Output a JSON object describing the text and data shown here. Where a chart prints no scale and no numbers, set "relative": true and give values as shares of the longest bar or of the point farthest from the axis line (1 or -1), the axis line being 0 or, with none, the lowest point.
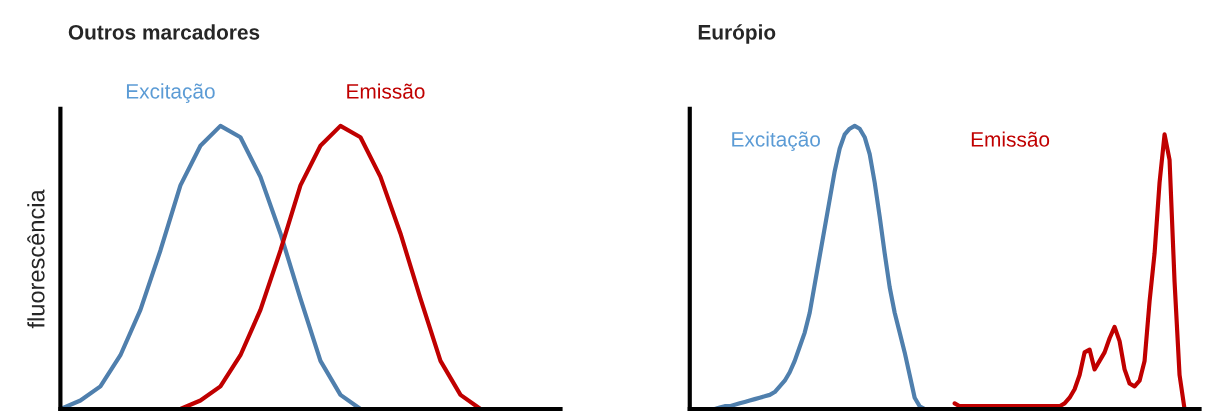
{
  "chart_data": [
    {
      "type": "line",
      "title": "Outros marcadores",
      "ylabel": "fluorescência",
      "relative": true,
      "legend": false,
      "marker": "none",
      "line_style": "solid",
      "categories": [
        null,
        null,
        null,
        null,
        null,
        null,
        null,
        null,
        null,
        null,
        null,
        null,
        null,
        null,
        null,
        null,
        null,
        null,
        null,
        null,
        null,
        null,
        null,
        null,
        null,
        null
      ],
      "series": [
        {
          "name": "Excitação",
          "color": "#4f7fad",
          "values": [
            0,
            0.03,
            0.08,
            0.19,
            0.35,
            0.56,
            0.79,
            0.93,
            1,
            0.96,
            0.82,
            0.62,
            0.39,
            0.17,
            0.05,
            0,
            null,
            null,
            null,
            null,
            null,
            null,
            null,
            null,
            null,
            null
          ]
        },
        {
          "name": "Emissão",
          "color": "#c00000",
          "values": [
            null,
            null,
            null,
            null,
            null,
            null,
            0,
            0.03,
            0.08,
            0.19,
            0.35,
            0.56,
            0.79,
            0.93,
            1,
            0.96,
            0.82,
            0.62,
            0.39,
            0.17,
            0.05,
            0,
            null,
            null,
            null,
            null
          ]
        }
      ]
    },
    {
      "type": "line",
      "title": "Európio",
      "relative": true,
      "legend": false,
      "marker": "none",
      "line_style": "solid",
      "categories": [
        null,
        null,
        null,
        null,
        null,
        null,
        null,
        null,
        null,
        null,
        null,
        null,
        null,
        null,
        null,
        null,
        null,
        null,
        null,
        null,
        null,
        null,
        null,
        null,
        null,
        null,
        null,
        null,
        null,
        null,
        null,
        null,
        null,
        null,
        null,
        null,
        null,
        null,
        null,
        null,
        null,
        null,
        null,
        null,
        null,
        null,
        null,
        null,
        null,
        null,
        null,
        null,
        null,
        null,
        null,
        null,
        null,
        null,
        null,
        null,
        null,
        null,
        null,
        null,
        null,
        null,
        null,
        null,
        null,
        null,
        null,
        null,
        null,
        null,
        null,
        null,
        null,
        null,
        null,
        null,
        null,
        null,
        null,
        null,
        null,
        null,
        null,
        null,
        null,
        null,
        null,
        null,
        null,
        null,
        null,
        null,
        null,
        null,
        null,
        null,
        null,
        null,
        null
      ],
      "series": [
        {
          "name": "Excitação",
          "color": "#4f7fad",
          "values": [
            null,
            null,
            null,
            null,
            null,
            0,
            0.005,
            0.01,
            0.01,
            0.015,
            0.02,
            0.025,
            0.03,
            0.035,
            0.04,
            0.045,
            0.05,
            0.06,
            0.08,
            0.1,
            0.13,
            0.17,
            0.22,
            0.27,
            0.34,
            0.44,
            0.54,
            0.64,
            0.74,
            0.84,
            0.92,
            0.97,
            0.99,
            1,
            0.99,
            0.96,
            0.9,
            0.8,
            0.68,
            0.55,
            0.43,
            0.34,
            0.27,
            0.2,
            0.12,
            0.04,
            0.01,
            0,
            0,
            null,
            null,
            null,
            null,
            null,
            null,
            null,
            null,
            null,
            null,
            null,
            null,
            null,
            null,
            null,
            null,
            null,
            null,
            null,
            null,
            null,
            null,
            null,
            null,
            null,
            null,
            null,
            null,
            null,
            null,
            null,
            null,
            null,
            null,
            null,
            null,
            null,
            null,
            null,
            null,
            null,
            null,
            null,
            null,
            null,
            null,
            null,
            null,
            null,
            null,
            null,
            null,
            null,
            null
          ]
        },
        {
          "name": "Emissão",
          "color": "#c00000",
          "values": [
            null,
            null,
            null,
            null,
            null,
            null,
            null,
            null,
            null,
            null,
            null,
            null,
            null,
            null,
            null,
            null,
            null,
            null,
            null,
            null,
            null,
            null,
            null,
            null,
            null,
            null,
            null,
            null,
            null,
            null,
            null,
            null,
            null,
            null,
            null,
            null,
            null,
            null,
            null,
            null,
            null,
            null,
            null,
            null,
            null,
            null,
            null,
            null,
            null,
            null,
            null,
            null,
            null,
            0.02,
            0.01,
            0.01,
            0.01,
            0.01,
            0.01,
            0.01,
            0.01,
            0.01,
            0.01,
            0.01,
            0.01,
            0.01,
            0.01,
            0.01,
            0.01,
            0.01,
            0.01,
            0.01,
            0.01,
            0.01,
            0.01,
            0.02,
            0.04,
            0.07,
            0.12,
            0.2,
            0.21,
            0.14,
            0.17,
            0.2,
            0.25,
            0.29,
            0.24,
            0.14,
            0.09,
            0.08,
            0.1,
            0.17,
            0.38,
            0.55,
            0.8,
            0.97,
            0.88,
            0.45,
            0.12,
            0,
            null,
            null,
            null
          ]
        }
      ]
    }
  ]
}
